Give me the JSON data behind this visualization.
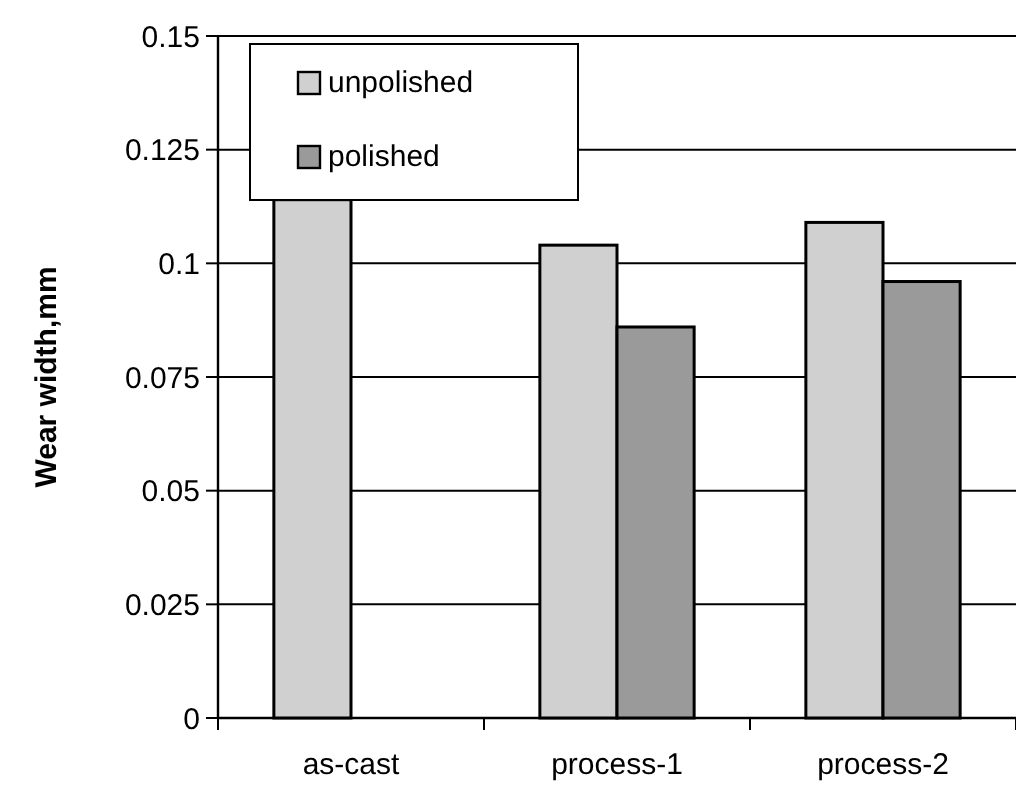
{
  "chart_data": {
    "type": "bar",
    "ylabel": "Wear width,mm",
    "categories": [
      "as-cast",
      "process-1",
      "process-2"
    ],
    "series": [
      {
        "name": "unpolished",
        "color": "#d0d0d0",
        "values": [
          0.114,
          0.104,
          0.109
        ]
      },
      {
        "name": "polished",
        "color": "#9a9a9a",
        "values": [
          null,
          0.086,
          0.096
        ]
      }
    ],
    "ylim": [
      0,
      0.15
    ],
    "yticks": [
      0,
      0.025,
      0.05,
      0.075,
      0.1,
      0.125,
      0.15
    ],
    "grid": "y",
    "legend": "top left"
  }
}
